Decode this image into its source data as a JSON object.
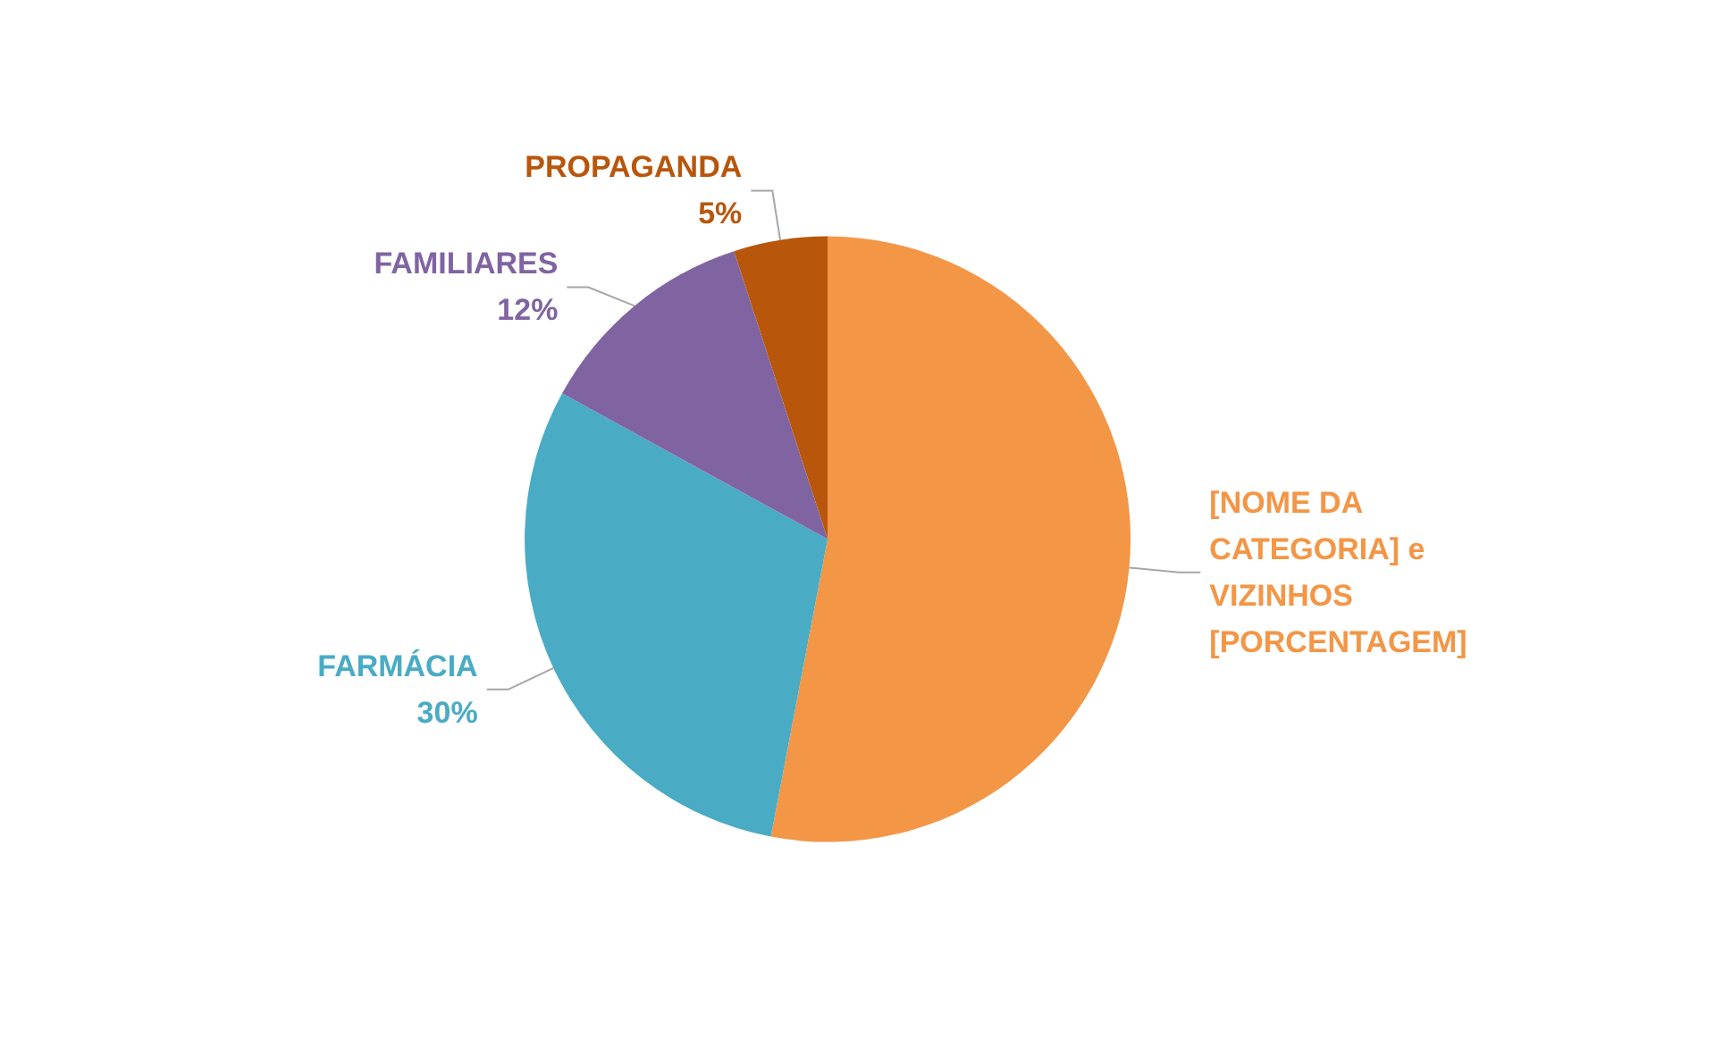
{
  "chart_data": {
    "type": "pie",
    "categories": [
      "[NOME DA CATEGORIA] e VIZINHOS",
      "FARMÁCIA",
      "FAMILIARES",
      "PROPAGANDA"
    ],
    "values": [
      53,
      30,
      12,
      5
    ],
    "value_labels": [
      "[PORCENTAGEM]",
      "30%",
      "12%",
      "5%"
    ],
    "colors": [
      "#f39646",
      "#4aabc5",
      "#8064a2",
      "#b8560c"
    ],
    "legend": false
  }
}
